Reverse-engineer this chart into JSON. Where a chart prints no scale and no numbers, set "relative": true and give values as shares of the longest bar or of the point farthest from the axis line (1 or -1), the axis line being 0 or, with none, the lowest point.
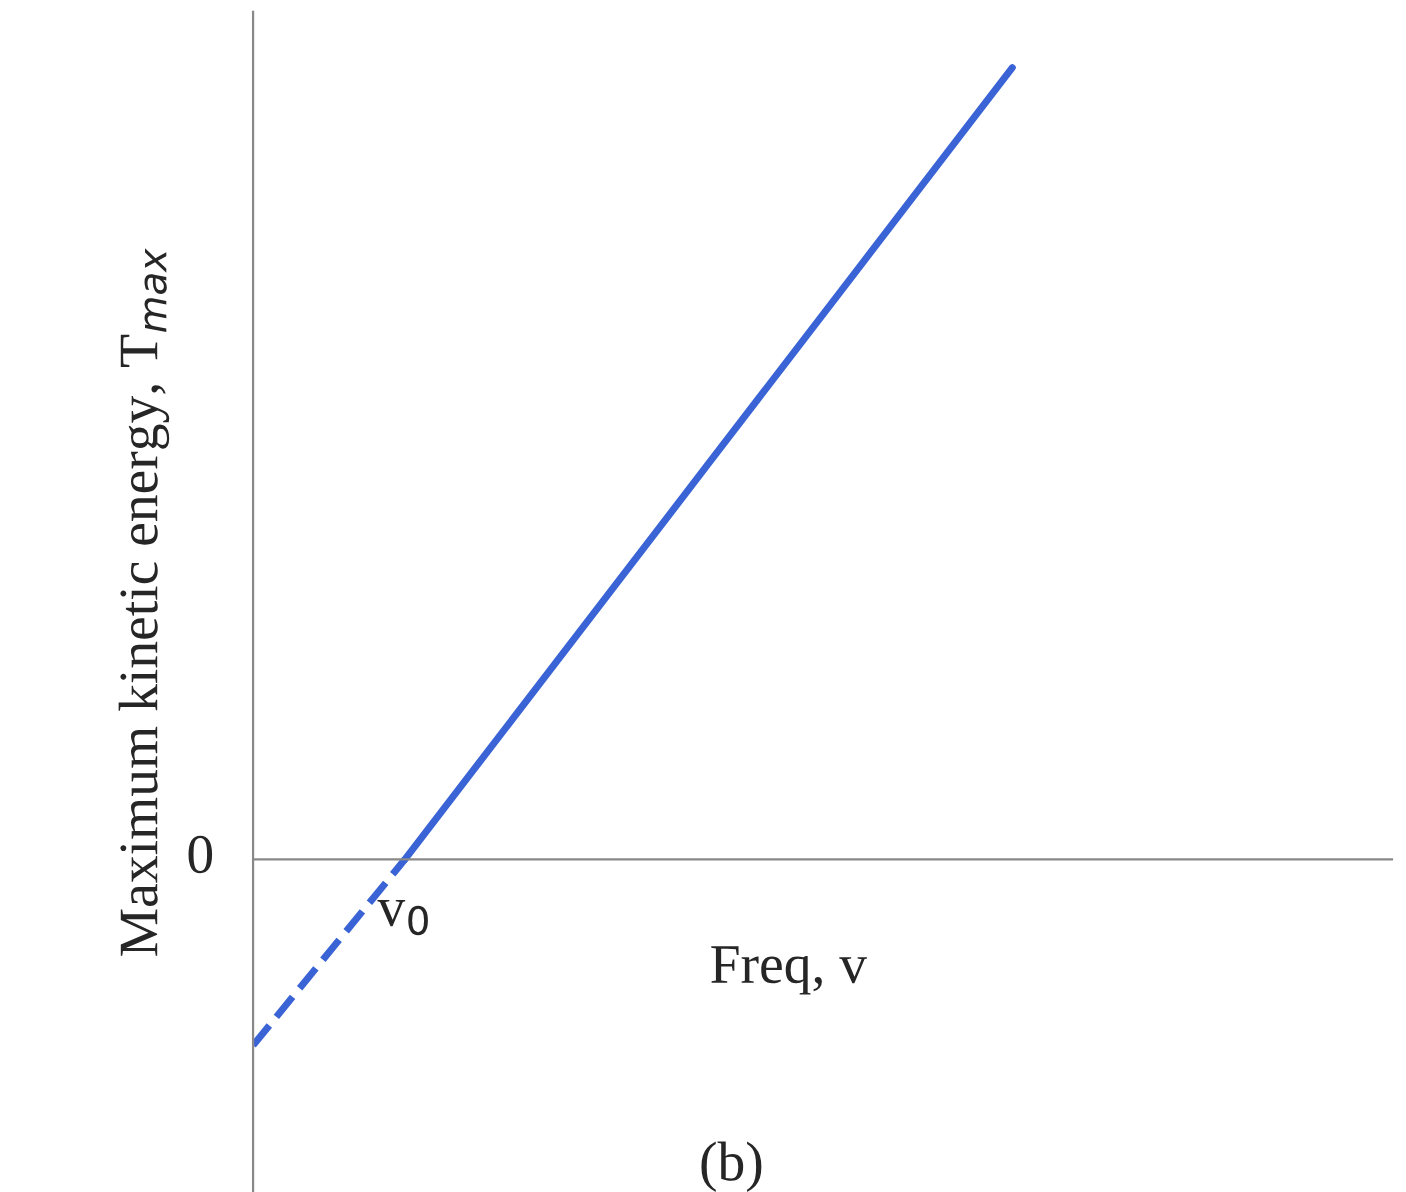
{
  "chart_data": {
    "type": "line",
    "relative": true,
    "xlabel": "Freq, v",
    "ylabel": "Maximum kinetic energy, T$_{max}$",
    "categories": [
      null,
      null,
      null,
      null,
      null,
      null
    ],
    "series": [
      {
        "color": "#3a63d6",
        "values": [
          null,
          0,
          0.25,
          0.5,
          0.75,
          1
        ],
        "line_style": "solid"
      },
      {
        "color": "#3a63d6",
        "values": [
          -0.235,
          0,
          null,
          null,
          null,
          null
        ],
        "line_style": "dashed"
      }
    ],
    "annotations": [
      "v$_{0}$",
      "0",
      "(b)"
    ],
    "legend": false
  }
}
